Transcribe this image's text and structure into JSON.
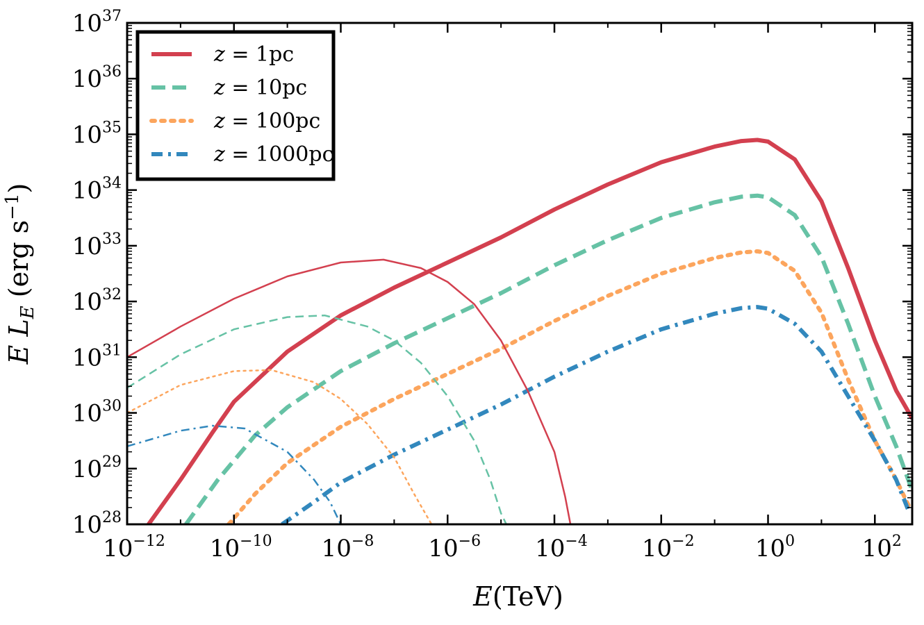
{
  "chart_data": {
    "type": "line",
    "xscale": "log",
    "yscale": "log",
    "xlabel": "E(TeV)",
    "ylabel": "E L_E (erg s^-1)",
    "xlim": [
      1e-12,
      500
    ],
    "ylim": [
      1e+28,
      1e+37
    ],
    "x_ticks": [
      {
        "value": 1e-12,
        "base": "10",
        "exp": "−12"
      },
      {
        "value": 1e-10,
        "base": "10",
        "exp": "−10"
      },
      {
        "value": 1e-08,
        "base": "10",
        "exp": "−8"
      },
      {
        "value": 1e-06,
        "base": "10",
        "exp": "−6"
      },
      {
        "value": 0.0001,
        "base": "10",
        "exp": "−4"
      },
      {
        "value": 0.01,
        "base": "10",
        "exp": "−2"
      },
      {
        "value": 1,
        "base": "10",
        "exp": "0"
      },
      {
        "value": 100,
        "base": "10",
        "exp": "2"
      }
    ],
    "y_ticks": [
      {
        "value": 1e+28,
        "base": "10",
        "exp": "28"
      },
      {
        "value": 1e+29,
        "base": "10",
        "exp": "29"
      },
      {
        "value": 1e+30,
        "base": "10",
        "exp": "30"
      },
      {
        "value": 1e+31,
        "base": "10",
        "exp": "31"
      },
      {
        "value": 1e+32,
        "base": "10",
        "exp": "32"
      },
      {
        "value": 1e+33,
        "base": "10",
        "exp": "33"
      },
      {
        "value": 1e+34,
        "base": "10",
        "exp": "34"
      },
      {
        "value": 1e+35,
        "base": "10",
        "exp": "35"
      },
      {
        "value": 1e+36,
        "base": "10",
        "exp": "36"
      },
      {
        "value": 1e+37,
        "base": "10",
        "exp": "37"
      }
    ],
    "legend": {
      "location": "top-left",
      "entries": [
        {
          "var": "z",
          "label": " = 1pc",
          "color": "#d3404f",
          "dash": "solid"
        },
        {
          "var": "z",
          "label": " = 10pc",
          "color": "#66c2a5",
          "dash": "dashed"
        },
        {
          "var": "z",
          "label": " = 100pc",
          "color": "#fca55d",
          "dash": "dotted"
        },
        {
          "var": "z",
          "label": " = 1000pc",
          "color": "#3288bd",
          "dash": "dashdot"
        }
      ]
    },
    "series": [
      {
        "name": "z = 1pc (thick)",
        "color": "#d3404f",
        "dash": "solid",
        "width": "thick",
        "points": [
          [
            -11.6,
            28.0
          ],
          [
            -11,
            28.8
          ],
          [
            -10.4,
            29.65
          ],
          [
            -10,
            30.2
          ],
          [
            -9,
            31.1
          ],
          [
            -8,
            31.75
          ],
          [
            -7,
            32.25
          ],
          [
            -6,
            32.7
          ],
          [
            -5,
            33.15
          ],
          [
            -4,
            33.65
          ],
          [
            -3,
            34.1
          ],
          [
            -2,
            34.5
          ],
          [
            -1,
            34.78
          ],
          [
            -0.5,
            34.88
          ],
          [
            -0.2,
            34.9
          ],
          [
            0,
            34.87
          ],
          [
            0.5,
            34.55
          ],
          [
            1,
            33.8
          ],
          [
            1.5,
            32.6
          ],
          [
            2,
            31.3
          ],
          [
            2.4,
            30.4
          ],
          [
            2.7,
            29.9
          ]
        ]
      },
      {
        "name": "z = 10pc (thick)",
        "color": "#66c2a5",
        "dash": "dashed",
        "width": "thick",
        "points": [
          [
            -10.9,
            28.0
          ],
          [
            -10.3,
            28.8
          ],
          [
            -9.6,
            29.6
          ],
          [
            -9,
            30.1
          ],
          [
            -8,
            30.75
          ],
          [
            -7,
            31.25
          ],
          [
            -6,
            31.7
          ],
          [
            -5,
            32.15
          ],
          [
            -4,
            32.65
          ],
          [
            -3,
            33.1
          ],
          [
            -2,
            33.5
          ],
          [
            -1,
            33.78
          ],
          [
            -0.5,
            33.88
          ],
          [
            -0.2,
            33.9
          ],
          [
            0,
            33.87
          ],
          [
            0.5,
            33.55
          ],
          [
            1,
            32.8
          ],
          [
            1.5,
            31.6
          ],
          [
            2,
            30.3
          ],
          [
            2.4,
            29.4
          ],
          [
            2.7,
            28.6
          ]
        ]
      },
      {
        "name": "z = 100pc (thick)",
        "color": "#fca55d",
        "dash": "dotted",
        "width": "thick",
        "points": [
          [
            -10.1,
            28.0
          ],
          [
            -9.6,
            28.55
          ],
          [
            -9,
            29.1
          ],
          [
            -8,
            29.75
          ],
          [
            -7,
            30.25
          ],
          [
            -6,
            30.7
          ],
          [
            -5,
            31.15
          ],
          [
            -4,
            31.65
          ],
          [
            -3,
            32.1
          ],
          [
            -2,
            32.5
          ],
          [
            -1,
            32.78
          ],
          [
            -0.5,
            32.88
          ],
          [
            -0.2,
            32.9
          ],
          [
            0,
            32.87
          ],
          [
            0.5,
            32.55
          ],
          [
            1,
            31.8
          ],
          [
            1.5,
            30.6
          ],
          [
            2,
            29.5
          ],
          [
            2.4,
            28.8
          ],
          [
            2.65,
            28.3
          ]
        ]
      },
      {
        "name": "z = 1000pc (thick)",
        "color": "#3288bd",
        "dash": "dashdot",
        "width": "thick",
        "points": [
          [
            -9.1,
            28.0
          ],
          [
            -8.5,
            28.4
          ],
          [
            -8,
            28.75
          ],
          [
            -7,
            29.25
          ],
          [
            -6,
            29.7
          ],
          [
            -5,
            30.15
          ],
          [
            -4,
            30.65
          ],
          [
            -3,
            31.1
          ],
          [
            -2,
            31.5
          ],
          [
            -1,
            31.78
          ],
          [
            -0.5,
            31.88
          ],
          [
            -0.2,
            31.9
          ],
          [
            0,
            31.87
          ],
          [
            0.5,
            31.6
          ],
          [
            1,
            31.1
          ],
          [
            1.5,
            30.3
          ],
          [
            2,
            29.5
          ],
          [
            2.4,
            28.8
          ],
          [
            2.65,
            28.2
          ]
        ]
      },
      {
        "name": "z = 1pc (thin)",
        "color": "#d3404f",
        "dash": "solid",
        "width": "thin",
        "points": [
          [
            -12,
            31.0
          ],
          [
            -11,
            31.55
          ],
          [
            -10,
            32.05
          ],
          [
            -9,
            32.45
          ],
          [
            -8,
            32.7
          ],
          [
            -7.2,
            32.75
          ],
          [
            -6.5,
            32.6
          ],
          [
            -6,
            32.35
          ],
          [
            -5.5,
            31.95
          ],
          [
            -5,
            31.3
          ],
          [
            -4.5,
            30.4
          ],
          [
            -4,
            29.3
          ],
          [
            -3.8,
            28.5
          ],
          [
            -3.7,
            28.0
          ]
        ]
      },
      {
        "name": "z = 10pc (thin)",
        "color": "#66c2a5",
        "dash": "dashed",
        "width": "thin",
        "points": [
          [
            -12,
            30.45
          ],
          [
            -11,
            31.05
          ],
          [
            -10,
            31.5
          ],
          [
            -9,
            31.72
          ],
          [
            -8.3,
            31.75
          ],
          [
            -7.5,
            31.55
          ],
          [
            -7,
            31.3
          ],
          [
            -6.5,
            30.9
          ],
          [
            -6,
            30.3
          ],
          [
            -5.5,
            29.5
          ],
          [
            -5.2,
            28.8
          ],
          [
            -5,
            28.2
          ],
          [
            -4.9,
            28.0
          ]
        ]
      },
      {
        "name": "z = 100pc (thin)",
        "color": "#fca55d",
        "dash": "dotted",
        "width": "thin",
        "points": [
          [
            -12,
            30.0
          ],
          [
            -11,
            30.5
          ],
          [
            -10,
            30.75
          ],
          [
            -9.3,
            30.77
          ],
          [
            -8.5,
            30.55
          ],
          [
            -8,
            30.25
          ],
          [
            -7.5,
            29.8
          ],
          [
            -7,
            29.2
          ],
          [
            -6.6,
            28.5
          ],
          [
            -6.3,
            28.0
          ]
        ]
      },
      {
        "name": "z = 1000pc (thin)",
        "color": "#3288bd",
        "dash": "dashdot",
        "width": "thin",
        "points": [
          [
            -12,
            29.4
          ],
          [
            -11,
            29.68
          ],
          [
            -10.4,
            29.77
          ],
          [
            -9.8,
            29.72
          ],
          [
            -9,
            29.3
          ],
          [
            -8.5,
            28.8
          ],
          [
            -8.2,
            28.4
          ],
          [
            -8,
            28.0
          ]
        ]
      }
    ]
  }
}
